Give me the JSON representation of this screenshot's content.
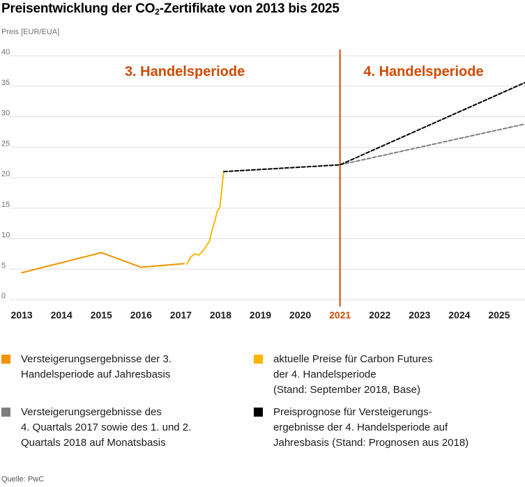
{
  "title": {
    "main": "Preisentwicklung der CO",
    "sub": "2",
    "rest": "-Zertifikate von 2013 bis 2025"
  },
  "colors": {
    "orange": "#f39200",
    "yellow": "#ffb600",
    "grey": "#7d7d7d",
    "black": "#000000",
    "accent": "#d04a02",
    "grid": "#e0e0e0"
  },
  "chart_data": {
    "type": "line",
    "ylabel": "Preis [EUR/EUA]",
    "ylim": [
      0,
      40
    ],
    "yticks": [
      0,
      5,
      10,
      15,
      20,
      25,
      30,
      35,
      40
    ],
    "xlim": [
      2012.7,
      2025.65
    ],
    "categories": [
      "2013",
      "2014",
      "2015",
      "2016",
      "2017",
      "2018",
      "2019",
      "2020",
      "2021",
      "2022",
      "2023",
      "2024",
      "2025"
    ],
    "highlight_category": "2021",
    "periods": [
      {
        "label": "3. Handelsperiode",
        "x": 2017.1
      },
      {
        "label": "4. Handelsperiode",
        "x": 2023.1
      }
    ],
    "divider_x": 2021,
    "series": [
      {
        "name": "Versteigerungsergebnisse der 3. Handelsperiode auf Jahresbasis",
        "color": "#f39200",
        "dash": false,
        "x": [
          2013,
          2015,
          2016,
          2017.08
        ],
        "y": [
          4.4,
          7.7,
          5.3,
          5.9
        ]
      },
      {
        "name": "aktuelle Preise für Carbon Futures der 4. Handelsperiode (Stand: September 2018, Base)",
        "color": "#ffb600",
        "dash": false,
        "x": [
          2017.15,
          2017.25,
          2017.35,
          2017.45,
          2017.5,
          2017.58,
          2017.65,
          2017.72,
          2017.78,
          2017.85,
          2017.92,
          2017.98,
          2018.02,
          2018.05,
          2018.08
        ],
        "y": [
          5.8,
          7.0,
          7.5,
          7.3,
          7.6,
          8.2,
          8.9,
          9.6,
          11.3,
          12.8,
          14.6,
          15.1,
          17.5,
          19.5,
          21.0
        ]
      },
      {
        "name": "Preisprognose für Versteigerungsergebnisse der 4. Handelsperiode auf Jahresbasis (Stand: Prognosen aus 2018)",
        "color": "#000000",
        "dash": true,
        "x": [
          2018.08,
          2021,
          2025.65
        ],
        "y": [
          21.0,
          22.1,
          35.6
        ]
      },
      {
        "name": "Versteigerungsergebnisse des 4. Quartals 2017 sowie des 1. und 2. Quartals 2018 auf Monatsbasis",
        "color": "#7d7d7d",
        "dash": true,
        "x": [
          2021,
          2025.65
        ],
        "y": [
          22.1,
          28.8
        ]
      }
    ]
  },
  "legend": [
    {
      "color": "#f39200",
      "text": "Versteigerungsergebnisse der 3.\nHandelsperiode auf Jahresbasis"
    },
    {
      "color": "#ffb600",
      "text": "aktuelle Preise für Carbon Futures\nder 4. Handelsperiode\n(Stand: September 2018, Base)"
    },
    {
      "color": "#7d7d7d",
      "text": "Versteigerungsergebnisse des\n4. Quartals 2017 sowie des 1. und 2.\nQuartals 2018 auf Monatsbasis"
    },
    {
      "color": "#000000",
      "text": "Preisprognose für Versteigerungs-\nergebnisse der 4. Handelsperiode auf\nJahresbasis (Stand: Prognosen aus 2018)"
    }
  ],
  "source": "Quelle: PwC"
}
